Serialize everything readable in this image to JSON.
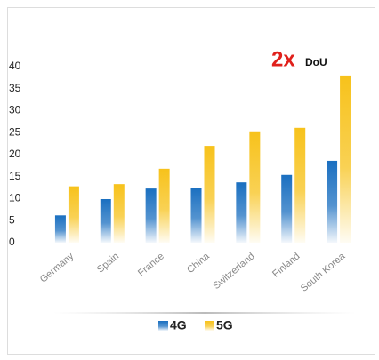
{
  "chart_data": {
    "type": "bar",
    "annotation": {
      "emphasis": "2x",
      "text": "DoU"
    },
    "categories": [
      "Germany",
      "Spain",
      "France",
      "China",
      "Switzerland",
      "Finland",
      "South Korea"
    ],
    "series": [
      {
        "name": "4G",
        "color": "#1a6fc0",
        "values": [
          6.2,
          9.9,
          12.3,
          12.5,
          13.7,
          15.4,
          18.6
        ]
      },
      {
        "name": "5G",
        "color": "#f7c21b",
        "values": [
          12.8,
          13.3,
          16.8,
          22,
          25.3,
          26.1,
          38
        ]
      }
    ],
    "ylim": [
      0,
      40
    ],
    "yticks": [
      0,
      5,
      10,
      15,
      20,
      25,
      30,
      35,
      40
    ],
    "grid": false
  }
}
